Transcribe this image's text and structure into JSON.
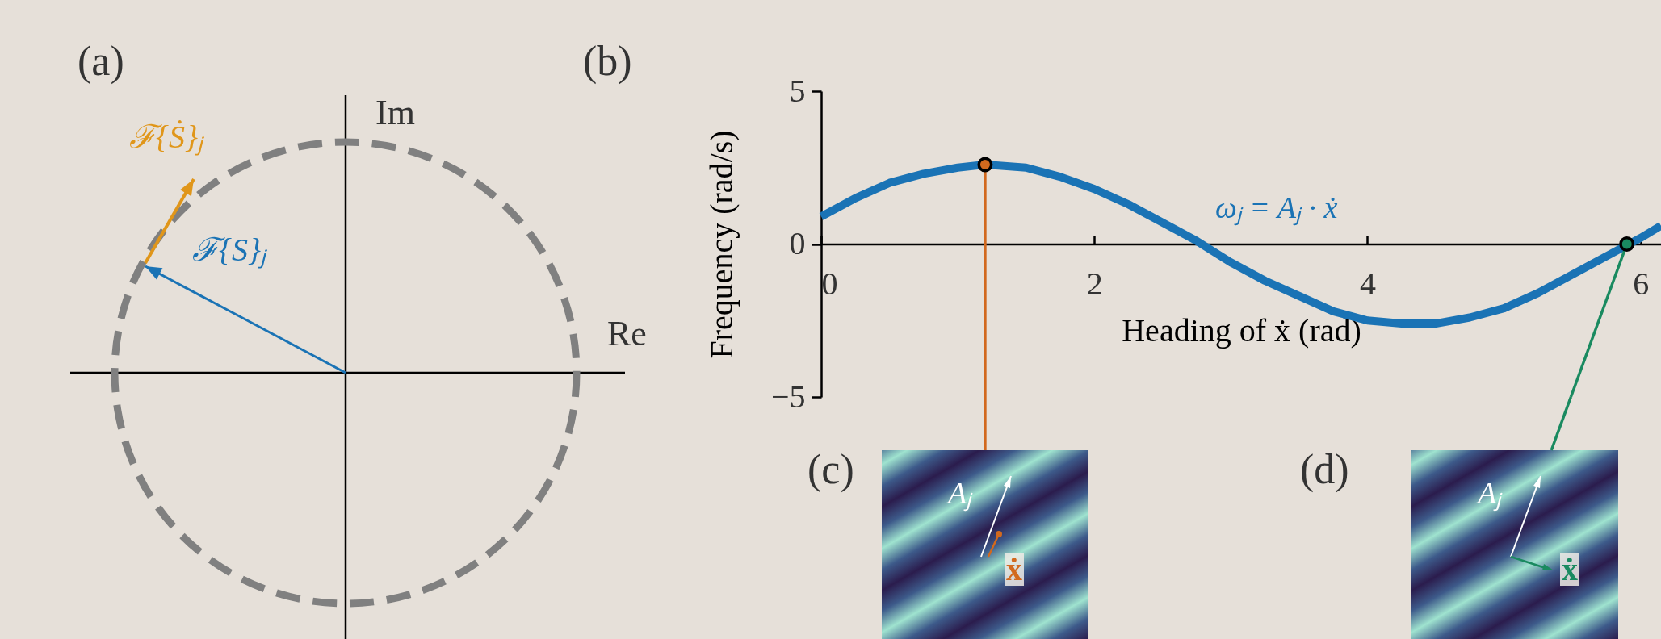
{
  "chart_data": [
    {
      "type": "other",
      "title": "(a)",
      "annotations": [
        "Im",
        "Re",
        "ℱ{Ṡ}ⱼ",
        "ℱ{S}ⱼ"
      ]
    },
    {
      "type": "line",
      "title": "(b)",
      "xlabel": "Heading of ẋ (rad)",
      "ylabel": "Frequency (rad/s)",
      "x": [
        0,
        0.25,
        0.5,
        0.75,
        1.0,
        1.2,
        1.5,
        1.75,
        2.0,
        2.25,
        2.5,
        2.75,
        3.0,
        3.25,
        3.5,
        3.75,
        4.0,
        4.25,
        4.5,
        4.75,
        5.0,
        5.25,
        5.5,
        5.75,
        6.0,
        6.15
      ],
      "series": [
        {
          "color": "#1a73b5",
          "values": [
            0.9,
            1.5,
            2.0,
            2.3,
            2.5,
            2.6,
            2.5,
            2.2,
            1.8,
            1.3,
            0.7,
            0.1,
            -0.6,
            -1.2,
            -1.7,
            -2.2,
            -2.5,
            -2.6,
            -2.6,
            -2.4,
            -2.1,
            -1.6,
            -1.0,
            -0.4,
            0.2,
            0.6
          ]
        },
        {
          "color": "#d2691e",
          "x": [
            1.2,
            1.2
          ],
          "values": [
            2.6,
            -5
          ]
        },
        {
          "color": "#1a8a60",
          "x": [
            5.9,
            5.49
          ],
          "values": [
            0,
            -5
          ]
        },
        {
          "type": "scatter",
          "x": [
            1.2,
            5.9
          ],
          "values": [
            2.6,
            0
          ],
          "colors": [
            "#d2691e",
            "#1a8a60"
          ]
        }
      ],
      "xlim": [
        0,
        6.15
      ],
      "ylim": [
        -5,
        5
      ],
      "xticks": [
        0,
        2,
        4,
        6
      ],
      "yticks": [
        {
          "value": -5,
          "label": "−5"
        },
        0,
        5
      ],
      "grid": false,
      "line_style": "solid",
      "annotations": [
        "ωⱼ = Aⱼ · ẋ",
        "(c)",
        "(d)",
        "Aⱼ",
        "ẋ",
        "Aⱼ",
        "ẋ"
      ]
    }
  ]
}
